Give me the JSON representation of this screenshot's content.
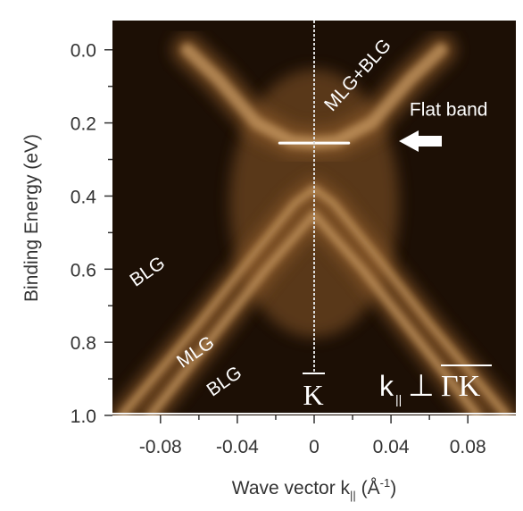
{
  "chart_data": {
    "type": "heatmap",
    "xlabel": "Wave vector k",
    "xlabel_subscript": "||",
    "xlabel_units_open": " (Å",
    "xlabel_units_sup": "-1",
    "xlabel_units_close": ")",
    "ylabel": "Binding Energy (eV)",
    "xlim": [
      -0.105,
      0.105
    ],
    "ylim": [
      1.0,
      -0.08
    ],
    "x_ticks": [
      -0.08,
      -0.04,
      0,
      0.04,
      0.08
    ],
    "x_tick_labels": [
      "-0.08",
      "-0.04",
      "0",
      "0.04",
      "0.08"
    ],
    "y_ticks": [
      0.0,
      0.2,
      0.4,
      0.6,
      0.8,
      1.0
    ],
    "y_tick_labels": [
      "0.0",
      "0.2",
      "0.4",
      "0.6",
      "0.8",
      "1.0"
    ],
    "bands": [
      {
        "name": "MLG+BLG",
        "x": [
          -0.066,
          -0.05,
          -0.03,
          -0.012,
          0,
          0.012,
          0.03,
          0.05,
          0.066
        ],
        "y": [
          0.0,
          0.08,
          0.2,
          0.25,
          0.255,
          0.25,
          0.2,
          0.08,
          0.0
        ]
      },
      {
        "name": "MLG",
        "x": [
          -0.1,
          -0.06,
          -0.03,
          -0.01,
          0,
          0.01,
          0.03,
          0.06,
          0.1
        ],
        "y": [
          1.0,
          0.75,
          0.55,
          0.42,
          0.38,
          0.42,
          0.55,
          0.75,
          1.0
        ]
      },
      {
        "name": "BLG",
        "x": [
          -0.085,
          -0.055,
          -0.025,
          0,
          0.025,
          0.055,
          0.085
        ],
        "y": [
          1.0,
          0.8,
          0.6,
          0.45,
          0.6,
          0.8,
          1.0
        ]
      }
    ],
    "annotations": [
      {
        "text": "MLG+BLG",
        "x": 0.025,
        "y": 0.08
      },
      {
        "text": "Flat band",
        "x": 0.07,
        "y": 0.18
      },
      {
        "text": "BLG",
        "x": -0.085,
        "y": 0.62
      },
      {
        "text": "MLG",
        "x": -0.06,
        "y": 0.84
      },
      {
        "text": "BLG",
        "x": -0.045,
        "y": 0.92
      },
      {
        "text": "K",
        "x": 0.0,
        "y": 0.93
      }
    ],
    "flat_band_energy": 0.255,
    "k_point_x": 0.0,
    "orientation_label": {
      "k": "k",
      "sub": "||",
      "perp": "⊥",
      "path": "ΓK"
    },
    "colormap": [
      "#1c0f05",
      "#4a2b12",
      "#8b5a2b",
      "#c89a62",
      "#fdeecd",
      "#ffffff"
    ]
  }
}
